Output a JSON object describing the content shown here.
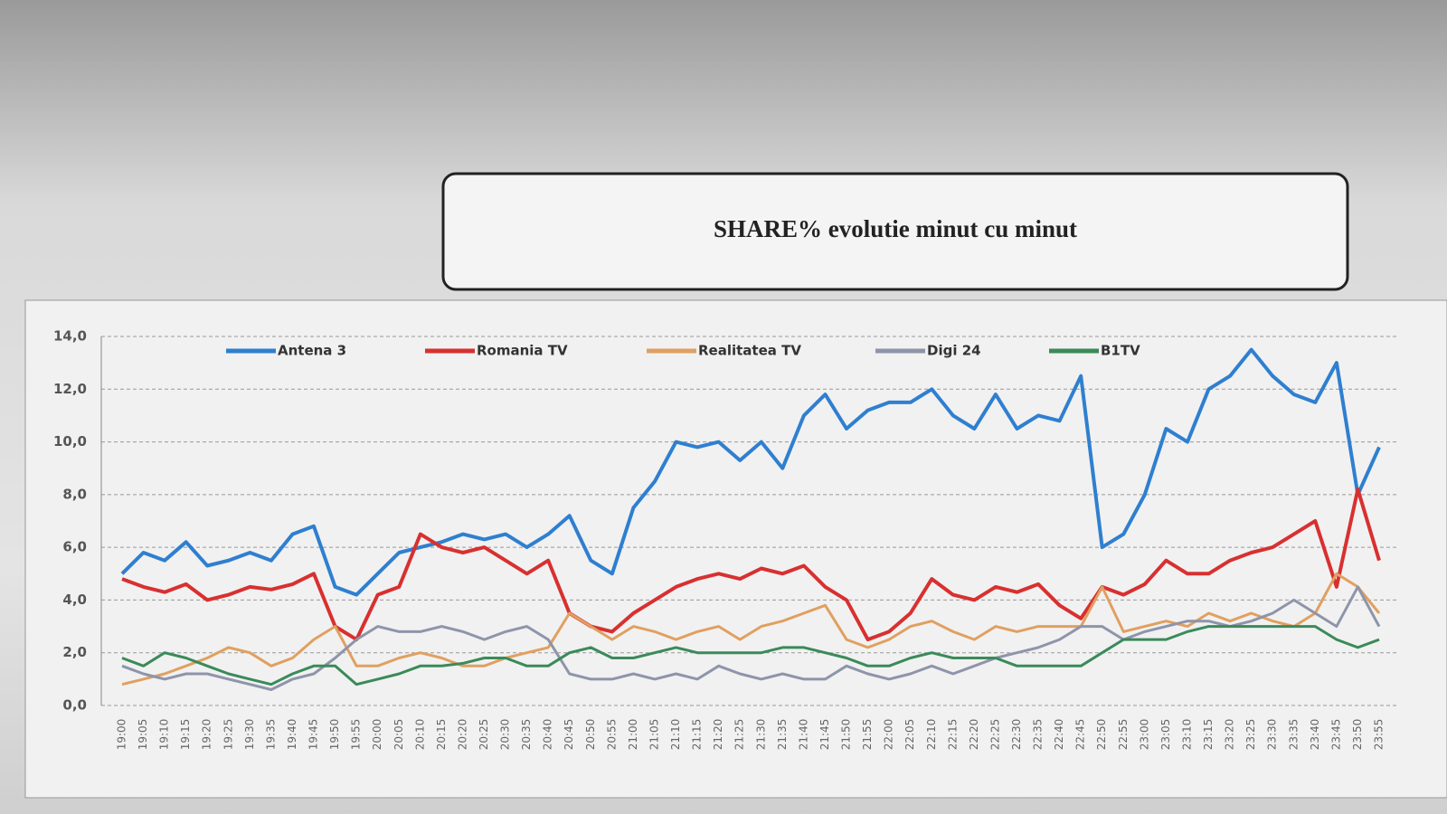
{
  "chart_data": {
    "type": "line",
    "title": "SHARE% evolutie minut cu minut",
    "categories": [
      "19:00",
      "19:05",
      "19:10",
      "19:15",
      "19:20",
      "19:25",
      "19:30",
      "19:35",
      "19:40",
      "19:45",
      "19:50",
      "19:55",
      "20:00",
      "20:05",
      "20:10",
      "20:15",
      "20:20",
      "20:25",
      "20:30",
      "20:35",
      "20:40",
      "20:45",
      "20:50",
      "20:55",
      "21:00",
      "21:05",
      "21:10",
      "21:15",
      "21:20",
      "21:25",
      "21:30",
      "21:35",
      "21:40",
      "21:45",
      "21:50",
      "21:55",
      "22:00",
      "22:05",
      "22:10",
      "22:15",
      "22:20",
      "22:25",
      "22:30",
      "22:35",
      "22:40",
      "22:45",
      "22:50",
      "22:55",
      "23:00",
      "23:05",
      "23:10",
      "23:15",
      "23:20",
      "23:25",
      "23:30",
      "23:35",
      "23:40",
      "23:45",
      "23:50",
      "23:55"
    ],
    "series": [
      {
        "name": "Antena 3",
        "color": "#2f7fd0",
        "values": [
          5.0,
          5.8,
          5.5,
          6.2,
          5.3,
          5.5,
          5.8,
          5.5,
          6.5,
          6.8,
          4.5,
          4.2,
          5.0,
          5.8,
          6.0,
          6.2,
          6.5,
          6.3,
          6.5,
          6.0,
          6.5,
          7.2,
          5.5,
          5.0,
          7.5,
          8.5,
          10.0,
          9.8,
          10.0,
          9.3,
          10.0,
          9.0,
          11.0,
          11.8,
          10.5,
          11.2,
          11.5,
          11.5,
          12.0,
          11.0,
          10.5,
          11.8,
          10.5,
          11.0,
          10.8,
          12.5,
          6.0,
          6.5,
          8.0,
          10.5,
          10.0,
          12.0,
          12.5,
          13.5,
          12.5,
          11.8,
          11.5,
          13.0,
          8.0,
          9.8
        ]
      },
      {
        "name": "Romania TV",
        "color": "#d83030",
        "values": [
          4.8,
          4.5,
          4.3,
          4.6,
          4.0,
          4.2,
          4.5,
          4.4,
          4.6,
          5.0,
          3.0,
          2.5,
          4.2,
          4.5,
          6.5,
          6.0,
          5.8,
          6.0,
          5.5,
          5.0,
          5.5,
          3.5,
          3.0,
          2.8,
          3.5,
          4.0,
          4.5,
          4.8,
          5.0,
          4.8,
          5.2,
          5.0,
          5.3,
          4.5,
          4.0,
          2.5,
          2.8,
          3.5,
          4.8,
          4.2,
          4.0,
          4.5,
          4.3,
          4.6,
          3.8,
          3.3,
          4.5,
          4.2,
          4.6,
          5.5,
          5.0,
          5.0,
          5.5,
          5.8,
          6.0,
          6.5,
          7.0,
          4.5,
          8.2,
          5.5
        ]
      },
      {
        "name": "Realitatea TV",
        "color": "#e0a060",
        "values": [
          0.8,
          1.0,
          1.2,
          1.5,
          1.8,
          2.2,
          2.0,
          1.5,
          1.8,
          2.5,
          3.0,
          1.5,
          1.5,
          1.8,
          2.0,
          1.8,
          1.5,
          1.5,
          1.8,
          2.0,
          2.2,
          3.5,
          3.0,
          2.5,
          3.0,
          2.8,
          2.5,
          2.8,
          3.0,
          2.5,
          3.0,
          3.2,
          3.5,
          3.8,
          2.5,
          2.2,
          2.5,
          3.0,
          3.2,
          2.8,
          2.5,
          3.0,
          2.8,
          3.0,
          3.0,
          3.0,
          4.5,
          2.8,
          3.0,
          3.2,
          3.0,
          3.5,
          3.2,
          3.5,
          3.2,
          3.0,
          3.5,
          5.0,
          4.5,
          3.5
        ]
      },
      {
        "name": "Digi 24",
        "color": "#8e94aa",
        "values": [
          1.5,
          1.2,
          1.0,
          1.2,
          1.2,
          1.0,
          0.8,
          0.6,
          1.0,
          1.2,
          1.8,
          2.5,
          3.0,
          2.8,
          2.8,
          3.0,
          2.8,
          2.5,
          2.8,
          3.0,
          2.5,
          1.2,
          1.0,
          1.0,
          1.2,
          1.0,
          1.2,
          1.0,
          1.5,
          1.2,
          1.0,
          1.2,
          1.0,
          1.0,
          1.5,
          1.2,
          1.0,
          1.2,
          1.5,
          1.2,
          1.5,
          1.8,
          2.0,
          2.2,
          2.5,
          3.0,
          3.0,
          2.5,
          2.8,
          3.0,
          3.2,
          3.2,
          3.0,
          3.2,
          3.5,
          4.0,
          3.5,
          3.0,
          4.5,
          3.0
        ]
      },
      {
        "name": "B1TV",
        "color": "#3a8a5a",
        "values": [
          1.8,
          1.5,
          2.0,
          1.8,
          1.5,
          1.2,
          1.0,
          0.8,
          1.2,
          1.5,
          1.5,
          0.8,
          1.0,
          1.2,
          1.5,
          1.5,
          1.6,
          1.8,
          1.8,
          1.5,
          1.5,
          2.0,
          2.2,
          1.8,
          1.8,
          2.0,
          2.2,
          2.0,
          2.0,
          2.0,
          2.0,
          2.2,
          2.2,
          2.0,
          1.8,
          1.5,
          1.5,
          1.8,
          2.0,
          1.8,
          1.8,
          1.8,
          1.5,
          1.5,
          1.5,
          1.5,
          2.0,
          2.5,
          2.5,
          2.5,
          2.8,
          3.0,
          3.0,
          3.0,
          3.0,
          3.0,
          3.0,
          2.5,
          2.2,
          2.5
        ]
      }
    ],
    "ylim": [
      0,
      14
    ],
    "yticks": [
      {
        "value": 0,
        "label": "0,0"
      },
      {
        "value": 2,
        "label": "2,0"
      },
      {
        "value": 4,
        "label": "4,0"
      },
      {
        "value": 6,
        "label": "6,0"
      },
      {
        "value": 8,
        "label": "8,0"
      },
      {
        "value": 10,
        "label": "10,0"
      },
      {
        "value": 12,
        "label": "12,0"
      },
      {
        "value": 14,
        "label": "14,0"
      }
    ],
    "grid": true,
    "legend": "top"
  }
}
